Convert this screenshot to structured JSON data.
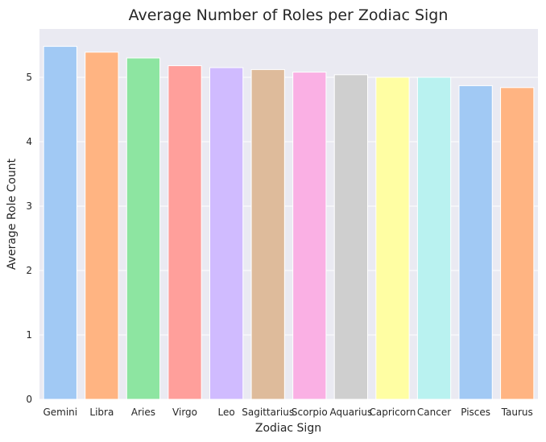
{
  "chart_data": {
    "type": "bar",
    "title": "Average Number of Roles per Zodiac Sign",
    "xlabel": "Zodiac Sign",
    "ylabel": "Average Role Count",
    "categories": [
      "Gemini",
      "Libra",
      "Aries",
      "Virgo",
      "Leo",
      "Sagittarius",
      "Scorpio",
      "Aquarius",
      "Capricorn",
      "Cancer",
      "Pisces",
      "Taurus"
    ],
    "values": [
      5.48,
      5.39,
      5.3,
      5.18,
      5.15,
      5.12,
      5.08,
      5.04,
      5.0,
      5.0,
      4.87,
      4.84
    ],
    "ylim": [
      0,
      5.75
    ],
    "yticks": [
      "0",
      "1",
      "2",
      "3",
      "4",
      "5"
    ],
    "grid": true,
    "background_color": "#eaeaf2",
    "colors": [
      "#a1c9f4",
      "#ffb482",
      "#8de5a1",
      "#ff9f9b",
      "#d0bbff",
      "#debb9b",
      "#fab0e4",
      "#cfcfcf",
      "#fffea3",
      "#b9f2f0",
      "#a1c9f4",
      "#ffb482"
    ]
  }
}
